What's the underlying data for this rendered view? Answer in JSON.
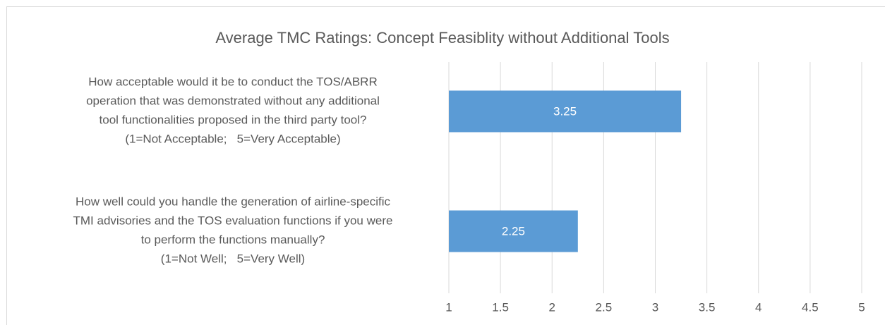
{
  "chart_data": {
    "type": "bar",
    "orientation": "horizontal",
    "title": "Average TMC Ratings: Concept Feasiblity without Additional Tools",
    "categories": [
      "How acceptable would it be to conduct the TOS/ABRR\noperation that was demonstrated without any additional\ntool functionalities proposed in the third party tool?\n(1=Not Acceptable;   5=Very Acceptable)",
      "How well could you handle the generation of airline-specific\nTMI advisories and the TOS evaluation functions if you were\nto perform the functions manually?\n(1=Not Well;   5=Very Well)"
    ],
    "values": [
      3.25,
      2.25
    ],
    "color": "#5b9bd5",
    "xlim": [
      1,
      5
    ],
    "xticks": [
      1,
      1.5,
      2,
      2.5,
      3,
      3.5,
      4,
      4.5,
      5
    ],
    "grid": true
  }
}
